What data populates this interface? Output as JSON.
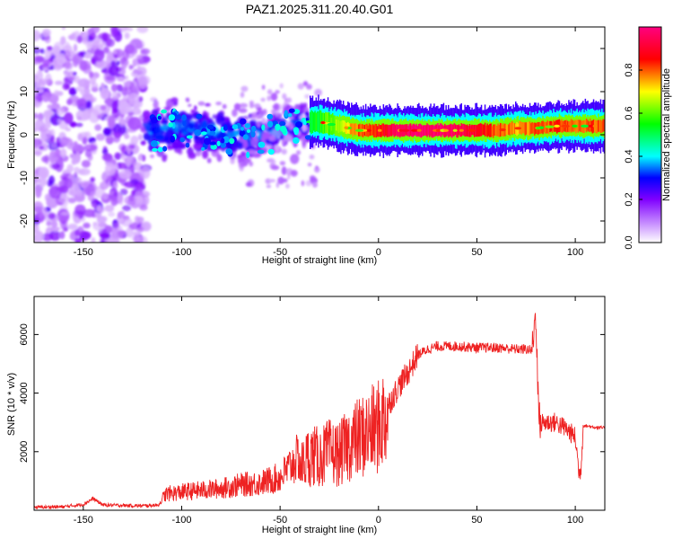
{
  "title": "PAZ1.2025.311.20.40.G01",
  "chart_data": [
    {
      "type": "heatmap",
      "xlabel": "Height of straight line (km)",
      "ylabel": "Frequency (Hz)",
      "xlim": [
        -175,
        115
      ],
      "ylim": [
        -25,
        25
      ],
      "xticks": [
        -150,
        -100,
        -50,
        0,
        50,
        100
      ],
      "yticks": [
        -20,
        -10,
        0,
        10,
        20
      ],
      "colorbar": {
        "label": "Normalized spectral amplitude",
        "range": [
          0,
          1
        ],
        "ticks": [
          0.0,
          0.2,
          0.4,
          0.6,
          0.8
        ],
        "colormap": [
          "#ffffff",
          "#8000ff",
          "#0000ff",
          "#00ffff",
          "#00ff00",
          "#ffff00",
          "#ff0000",
          "#ff0080"
        ]
      },
      "ridge": {
        "x": [
          -115,
          -100,
          -90,
          -80,
          -70,
          -60,
          -50,
          -40,
          -30,
          -20,
          -10,
          0,
          10,
          20,
          30,
          40,
          50,
          60,
          70,
          80,
          90,
          100,
          115
        ],
        "freq": [
          0.5,
          2,
          1,
          0.5,
          -0.5,
          0,
          1,
          3,
          3,
          2,
          1,
          1,
          1,
          1,
          1,
          1,
          1,
          1,
          1.5,
          1.5,
          2,
          2,
          2
        ],
        "amplitude": [
          0.3,
          0.35,
          0.35,
          0.3,
          0.35,
          0.4,
          0.45,
          0.5,
          0.55,
          0.65,
          0.8,
          0.85,
          0.95,
          0.98,
          0.98,
          0.95,
          0.88,
          0.8,
          0.75,
          0.8,
          0.82,
          0.8,
          0.8
        ]
      }
    },
    {
      "type": "line",
      "xlabel": "Height of straight line (km)",
      "ylabel": "SNR (10 * v/v)",
      "xlim": [
        -175,
        115
      ],
      "ylim": [
        0,
        7300
      ],
      "xticks": [
        -150,
        -100,
        -50,
        0,
        50,
        100
      ],
      "yticks": [
        2000,
        4000,
        6000
      ],
      "color": "#ee2222",
      "series": [
        {
          "x": [
            -175,
            -160,
            -150,
            -145,
            -140,
            -120,
            -112,
            -108,
            -100,
            -90,
            -80,
            -70,
            -60,
            -50,
            -45,
            -40,
            -35,
            -30,
            -25,
            -20,
            -15,
            -10,
            -5,
            0,
            5,
            10,
            15,
            20,
            25,
            30,
            40,
            50,
            60,
            70,
            75,
            78,
            80,
            81,
            82,
            85,
            90,
            95,
            100,
            102,
            103,
            104,
            108,
            115
          ],
          "y": [
            100,
            120,
            200,
            400,
            180,
            150,
            180,
            450,
            500,
            550,
            600,
            700,
            750,
            900,
            1200,
            1500,
            2000,
            1900,
            2100,
            2000,
            2400,
            2600,
            2800,
            3000,
            3600,
            4200,
            4700,
            5300,
            5500,
            5600,
            5600,
            5550,
            5550,
            5500,
            5500,
            5450,
            6800,
            4000,
            3000,
            3000,
            3000,
            2800,
            2500,
            1200,
            1500,
            2900,
            2850,
            2800
          ]
        }
      ]
    }
  ]
}
